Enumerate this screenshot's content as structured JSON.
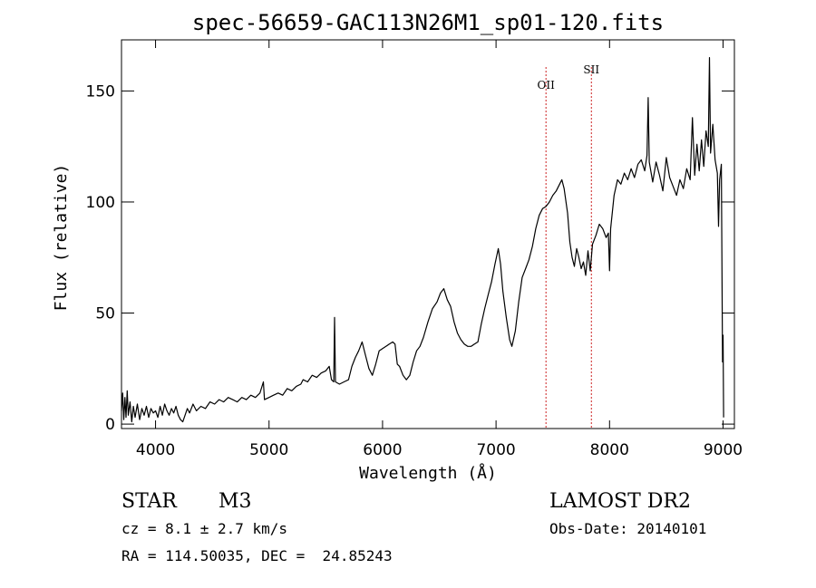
{
  "chart_data": {
    "type": "line",
    "title": "spec-56659-GAC113N26M1_sp01-120.fits",
    "xlabel": "Wavelength (Å)",
    "ylabel": "Flux (relative)",
    "xlim": [
      3700,
      9100
    ],
    "ylim": [
      -2,
      173
    ],
    "grid": false,
    "legend": "none",
    "x_ticks": [
      4000,
      5000,
      6000,
      7000,
      8000,
      9000
    ],
    "y_ticks": [
      0,
      50,
      100,
      150
    ],
    "x_tick_labels": [
      "4000",
      "5000",
      "6000",
      "7000",
      "8000",
      "9000"
    ],
    "y_tick_labels": [
      "0",
      "50",
      "100",
      "150"
    ],
    "series": [
      {
        "color": "#000000",
        "points": [
          [
            3700,
            6
          ],
          [
            3710,
            14
          ],
          [
            3720,
            2
          ],
          [
            3730,
            12
          ],
          [
            3740,
            3
          ],
          [
            3750,
            15
          ],
          [
            3760,
            4
          ],
          [
            3775,
            10
          ],
          [
            3790,
            1
          ],
          [
            3805,
            8
          ],
          [
            3820,
            3
          ],
          [
            3840,
            9
          ],
          [
            3860,
            2
          ],
          [
            3880,
            7
          ],
          [
            3900,
            4
          ],
          [
            3920,
            8
          ],
          [
            3940,
            3
          ],
          [
            3960,
            7
          ],
          [
            3980,
            5
          ],
          [
            4000,
            6
          ],
          [
            4020,
            3
          ],
          [
            4040,
            8
          ],
          [
            4060,
            4
          ],
          [
            4080,
            9
          ],
          [
            4100,
            6
          ],
          [
            4120,
            4
          ],
          [
            4140,
            7
          ],
          [
            4160,
            5
          ],
          [
            4180,
            8
          ],
          [
            4200,
            4
          ],
          [
            4220,
            2
          ],
          [
            4240,
            1
          ],
          [
            4260,
            4
          ],
          [
            4280,
            7
          ],
          [
            4300,
            5
          ],
          [
            4330,
            9
          ],
          [
            4360,
            6
          ],
          [
            4400,
            8
          ],
          [
            4440,
            7
          ],
          [
            4480,
            10
          ],
          [
            4520,
            9
          ],
          [
            4560,
            11
          ],
          [
            4600,
            10
          ],
          [
            4640,
            12
          ],
          [
            4680,
            11
          ],
          [
            4720,
            10
          ],
          [
            4760,
            12
          ],
          [
            4800,
            11
          ],
          [
            4840,
            13
          ],
          [
            4880,
            12
          ],
          [
            4920,
            14
          ],
          [
            4950,
            19
          ],
          [
            4960,
            11
          ],
          [
            5000,
            12
          ],
          [
            5040,
            13
          ],
          [
            5080,
            14
          ],
          [
            5120,
            13
          ],
          [
            5160,
            16
          ],
          [
            5200,
            15
          ],
          [
            5240,
            17
          ],
          [
            5280,
            18
          ],
          [
            5300,
            20
          ],
          [
            5340,
            19
          ],
          [
            5380,
            22
          ],
          [
            5420,
            21
          ],
          [
            5460,
            23
          ],
          [
            5500,
            24
          ],
          [
            5530,
            26
          ],
          [
            5550,
            20
          ],
          [
            5570,
            19
          ],
          [
            5577,
            48
          ],
          [
            5585,
            19
          ],
          [
            5620,
            18
          ],
          [
            5660,
            19
          ],
          [
            5700,
            20
          ],
          [
            5730,
            26
          ],
          [
            5760,
            30
          ],
          [
            5790,
            33
          ],
          [
            5820,
            37
          ],
          [
            5850,
            31
          ],
          [
            5880,
            25
          ],
          [
            5910,
            22
          ],
          [
            5940,
            27
          ],
          [
            5970,
            33
          ],
          [
            6000,
            34
          ],
          [
            6030,
            35
          ],
          [
            6060,
            36
          ],
          [
            6090,
            37
          ],
          [
            6110,
            36
          ],
          [
            6130,
            27
          ],
          [
            6150,
            26
          ],
          [
            6180,
            22
          ],
          [
            6210,
            20
          ],
          [
            6240,
            22
          ],
          [
            6270,
            28
          ],
          [
            6300,
            33
          ],
          [
            6330,
            35
          ],
          [
            6360,
            39
          ],
          [
            6400,
            46
          ],
          [
            6440,
            52
          ],
          [
            6480,
            55
          ],
          [
            6510,
            59
          ],
          [
            6540,
            61
          ],
          [
            6570,
            56
          ],
          [
            6600,
            53
          ],
          [
            6630,
            46
          ],
          [
            6660,
            41
          ],
          [
            6690,
            38
          ],
          [
            6720,
            36
          ],
          [
            6750,
            35
          ],
          [
            6780,
            35
          ],
          [
            6810,
            36
          ],
          [
            6840,
            37
          ],
          [
            6870,
            45
          ],
          [
            6900,
            52
          ],
          [
            6930,
            58
          ],
          [
            6960,
            64
          ],
          [
            6990,
            72
          ],
          [
            7020,
            79
          ],
          [
            7040,
            72
          ],
          [
            7060,
            60
          ],
          [
            7090,
            48
          ],
          [
            7120,
            38
          ],
          [
            7140,
            35
          ],
          [
            7170,
            42
          ],
          [
            7200,
            55
          ],
          [
            7230,
            66
          ],
          [
            7260,
            70
          ],
          [
            7290,
            74
          ],
          [
            7320,
            80
          ],
          [
            7350,
            88
          ],
          [
            7380,
            94
          ],
          [
            7410,
            97
          ],
          [
            7440,
            98
          ],
          [
            7470,
            100
          ],
          [
            7500,
            103
          ],
          [
            7530,
            105
          ],
          [
            7560,
            108
          ],
          [
            7580,
            110
          ],
          [
            7600,
            106
          ],
          [
            7630,
            95
          ],
          [
            7650,
            82
          ],
          [
            7670,
            75
          ],
          [
            7690,
            71
          ],
          [
            7710,
            79
          ],
          [
            7730,
            75
          ],
          [
            7750,
            70
          ],
          [
            7770,
            73
          ],
          [
            7790,
            67
          ],
          [
            7810,
            78
          ],
          [
            7830,
            69
          ],
          [
            7850,
            81
          ],
          [
            7880,
            85
          ],
          [
            7910,
            90
          ],
          [
            7940,
            88
          ],
          [
            7970,
            84
          ],
          [
            7990,
            86
          ],
          [
            8000,
            69
          ],
          [
            8010,
            88
          ],
          [
            8040,
            103
          ],
          [
            8070,
            110
          ],
          [
            8100,
            108
          ],
          [
            8130,
            113
          ],
          [
            8160,
            110
          ],
          [
            8190,
            115
          ],
          [
            8220,
            111
          ],
          [
            8250,
            117
          ],
          [
            8280,
            119
          ],
          [
            8310,
            114
          ],
          [
            8330,
            121
          ],
          [
            8340,
            147
          ],
          [
            8350,
            118
          ],
          [
            8380,
            109
          ],
          [
            8410,
            118
          ],
          [
            8440,
            112
          ],
          [
            8470,
            105
          ],
          [
            8500,
            120
          ],
          [
            8530,
            111
          ],
          [
            8560,
            107
          ],
          [
            8590,
            103
          ],
          [
            8620,
            110
          ],
          [
            8650,
            106
          ],
          [
            8680,
            115
          ],
          [
            8710,
            110
          ],
          [
            8730,
            138
          ],
          [
            8750,
            112
          ],
          [
            8770,
            126
          ],
          [
            8790,
            114
          ],
          [
            8810,
            128
          ],
          [
            8830,
            116
          ],
          [
            8850,
            132
          ],
          [
            8870,
            125
          ],
          [
            8880,
            165
          ],
          [
            8890,
            122
          ],
          [
            8910,
            135
          ],
          [
            8930,
            119
          ],
          [
            8950,
            113
          ],
          [
            8960,
            89
          ],
          [
            8970,
            110
          ],
          [
            8985,
            117
          ],
          [
            8995,
            28
          ],
          [
            9000,
            40
          ],
          [
            9005,
            3
          ]
        ]
      }
    ],
    "annotations": [
      {
        "x": 7440,
        "label": "OII",
        "label_y": 151,
        "line_color": "#cc2222"
      },
      {
        "x": 7840,
        "label": "SII",
        "label_y": 158,
        "line_color": "#cc2222"
      }
    ]
  },
  "info": {
    "object_class": "STAR",
    "subclass": "M3",
    "survey": "LAMOST DR2",
    "cz": "cz = 8.1 ± 2.7 km/s",
    "obs_date": "Obs-Date: 20140101",
    "coords": "RA = 114.50035, DEC =  24.85243"
  }
}
